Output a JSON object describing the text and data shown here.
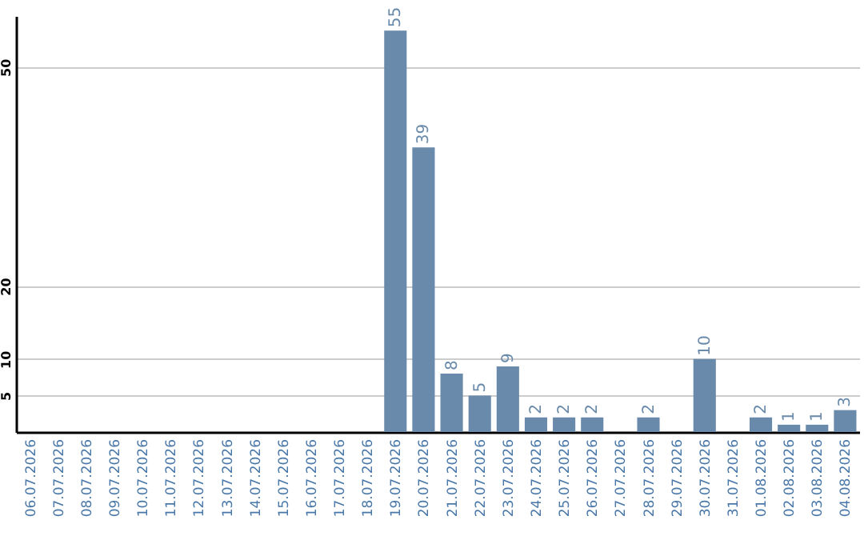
{
  "chart_data": {
    "type": "bar",
    "categories": [
      "06.07.2026",
      "07.07.2026",
      "08.07.2026",
      "09.07.2026",
      "10.07.2026",
      "11.07.2026",
      "12.07.2026",
      "13.07.2026",
      "14.07.2026",
      "15.07.2026",
      "16.07.2026",
      "17.07.2026",
      "18.07.2026",
      "19.07.2026",
      "20.07.2026",
      "21.07.2026",
      "22.07.2026",
      "23.07.2026",
      "24.07.2026",
      "25.07.2026",
      "26.07.2026",
      "27.07.2026",
      "28.07.2026",
      "29.07.2026",
      "30.07.2026",
      "31.07.2026",
      "01.08.2026",
      "02.08.2026",
      "03.08.2026",
      "04.08.2026"
    ],
    "values": [
      0,
      0,
      0,
      0,
      0,
      0,
      0,
      0,
      0,
      0,
      0,
      0,
      0,
      55,
      39,
      8,
      5,
      9,
      2,
      2,
      2,
      0,
      2,
      0,
      10,
      0,
      2,
      1,
      1,
      3
    ],
    "value_labels": [
      null,
      null,
      null,
      null,
      null,
      null,
      null,
      null,
      null,
      null,
      null,
      null,
      null,
      "55",
      "39",
      "8",
      "5",
      "9",
      "2",
      "2",
      "2",
      null,
      "2",
      null,
      "10",
      null,
      "2",
      "1",
      "1",
      "3"
    ],
    "color": "#6a8aab",
    "ylim": [
      0,
      57
    ],
    "yticks": [
      5,
      10,
      20,
      50
    ],
    "grid": "y"
  }
}
